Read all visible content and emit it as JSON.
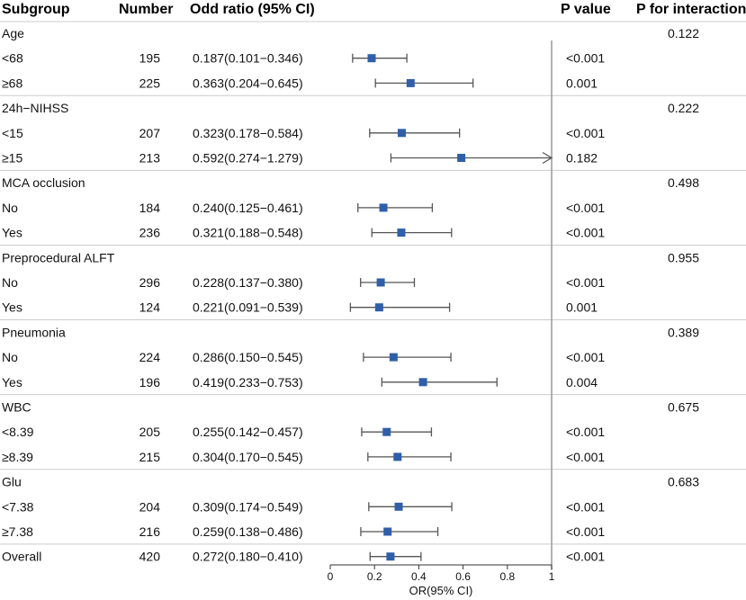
{
  "chart_data": {
    "type": "forest",
    "headers": {
      "subgroup": "Subgroup",
      "number": "Number",
      "odds": "Odd ratio (95% CI)",
      "pvalue": "P value",
      "pint": "P for interaction"
    },
    "xlabel": "OR(95% CI)",
    "xlim": [
      0,
      1
    ],
    "xticks": [
      "0",
      "0.2",
      "0.4",
      "0.6",
      "0.8",
      "1"
    ],
    "reference_line": 1,
    "colors": {
      "point": "#2f5fa8",
      "whisker": "#555555",
      "divider": "#cccccc",
      "refline": "#999999",
      "text": "#111111"
    },
    "groups": [
      {
        "name": "Age",
        "p_interaction": "0.122",
        "rows": [
          {
            "label": "<68",
            "n": "195",
            "ci_text": "0.187(0.101−0.346)",
            "or": 0.187,
            "lo": 0.101,
            "hi": 0.346,
            "p": "<0.001"
          },
          {
            "label": "≥68",
            "n": "225",
            "ci_text": "0.363(0.204−0.645)",
            "or": 0.363,
            "lo": 0.204,
            "hi": 0.645,
            "p": "0.001"
          }
        ]
      },
      {
        "name": "24h−NIHSS",
        "p_interaction": "0.222",
        "rows": [
          {
            "label": "<15",
            "n": "207",
            "ci_text": "0.323(0.178−0.584)",
            "or": 0.323,
            "lo": 0.178,
            "hi": 0.584,
            "p": "<0.001"
          },
          {
            "label": "≥15",
            "n": "213",
            "ci_text": "0.592(0.274−1.279)",
            "or": 0.592,
            "lo": 0.274,
            "hi": 1.279,
            "p": "0.182"
          }
        ]
      },
      {
        "name": "MCA occlusion",
        "p_interaction": "0.498",
        "rows": [
          {
            "label": "No",
            "n": "184",
            "ci_text": "0.240(0.125−0.461)",
            "or": 0.24,
            "lo": 0.125,
            "hi": 0.461,
            "p": "<0.001"
          },
          {
            "label": "Yes",
            "n": "236",
            "ci_text": "0.321(0.188−0.548)",
            "or": 0.321,
            "lo": 0.188,
            "hi": 0.548,
            "p": "<0.001"
          }
        ]
      },
      {
        "name": "Preprocedural ALFT",
        "p_interaction": "0.955",
        "rows": [
          {
            "label": "No",
            "n": "296",
            "ci_text": "0.228(0.137−0.380)",
            "or": 0.228,
            "lo": 0.137,
            "hi": 0.38,
            "p": "<0.001"
          },
          {
            "label": "Yes",
            "n": "124",
            "ci_text": "0.221(0.091−0.539)",
            "or": 0.221,
            "lo": 0.091,
            "hi": 0.539,
            "p": "0.001"
          }
        ]
      },
      {
        "name": "Pneumonia",
        "p_interaction": "0.389",
        "rows": [
          {
            "label": "No",
            "n": "224",
            "ci_text": "0.286(0.150−0.545)",
            "or": 0.286,
            "lo": 0.15,
            "hi": 0.545,
            "p": "<0.001"
          },
          {
            "label": "Yes",
            "n": "196",
            "ci_text": "0.419(0.233−0.753)",
            "or": 0.419,
            "lo": 0.233,
            "hi": 0.753,
            "p": "0.004"
          }
        ]
      },
      {
        "name": "WBC",
        "p_interaction": "0.675",
        "rows": [
          {
            "label": "<8.39",
            "n": "205",
            "ci_text": "0.255(0.142−0.457)",
            "or": 0.255,
            "lo": 0.142,
            "hi": 0.457,
            "p": "<0.001"
          },
          {
            "label": "≥8.39",
            "n": "215",
            "ci_text": "0.304(0.170−0.545)",
            "or": 0.304,
            "lo": 0.17,
            "hi": 0.545,
            "p": "<0.001"
          }
        ]
      },
      {
        "name": "Glu",
        "p_interaction": "0.683",
        "rows": [
          {
            "label": "<7.38",
            "n": "204",
            "ci_text": "0.309(0.174−0.549)",
            "or": 0.309,
            "lo": 0.174,
            "hi": 0.549,
            "p": "<0.001"
          },
          {
            "label": "≥7.38",
            "n": "216",
            "ci_text": "0.259(0.138−0.486)",
            "or": 0.259,
            "lo": 0.138,
            "hi": 0.486,
            "p": "<0.001"
          }
        ]
      }
    ],
    "overall": {
      "label": "Overall",
      "n": "420",
      "ci_text": "0.272(0.180−0.410)",
      "or": 0.272,
      "lo": 0.18,
      "hi": 0.41,
      "p": "<0.001"
    }
  }
}
